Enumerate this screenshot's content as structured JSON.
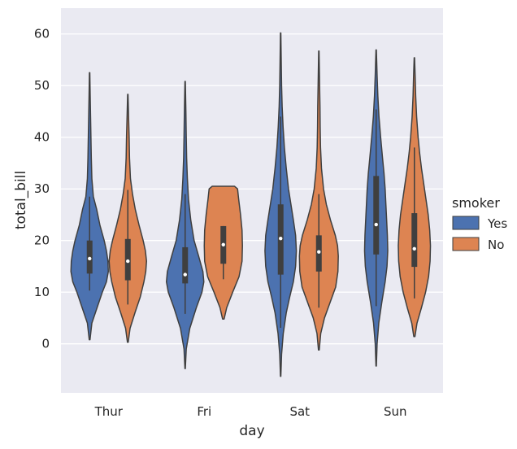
{
  "chart_data": {
    "type": "violin",
    "title": "",
    "xlabel": "day",
    "ylabel": "total_bill",
    "categories": [
      "Thur",
      "Fri",
      "Sat",
      "Sun"
    ],
    "ylim": [
      -9.5,
      65
    ],
    "yticks": [
      0,
      10,
      20,
      30,
      40,
      50,
      60
    ],
    "grid": true,
    "legend": {
      "title": "smoker",
      "position": "right"
    },
    "series": [
      {
        "name": "Yes",
        "color": "#4c72b0",
        "violins": [
          {
            "min": 0.8,
            "max": 52.5,
            "q1": 13.6,
            "median": 16.5,
            "q3": 20.0,
            "whisker_low": 10.3,
            "whisker_high": 28.5,
            "density": [
              [
                0.8,
                0.02
              ],
              [
                4,
                0.12
              ],
              [
                7,
                0.4
              ],
              [
                10,
                0.68
              ],
              [
                12,
                0.9
              ],
              [
                14,
                1
              ],
              [
                16,
                0.98
              ],
              [
                18,
                0.9
              ],
              [
                20,
                0.78
              ],
              [
                23,
                0.55
              ],
              [
                26,
                0.38
              ],
              [
                28.5,
                0.2
              ],
              [
                32,
                0.12
              ],
              [
                36,
                0.09
              ],
              [
                40,
                0.07
              ],
              [
                44,
                0.05
              ],
              [
                48,
                0.03
              ],
              [
                52.5,
                0.01
              ]
            ]
          },
          {
            "min": -4.8,
            "max": 50.8,
            "q1": 11.7,
            "median": 13.4,
            "q3": 18.7,
            "whisker_low": 5.8,
            "whisker_high": 29.0,
            "density": [
              [
                -4.8,
                0.01
              ],
              [
                -1,
                0.06
              ],
              [
                3,
                0.25
              ],
              [
                7,
                0.6
              ],
              [
                10,
                0.9
              ],
              [
                12,
                1
              ],
              [
                14,
                0.95
              ],
              [
                17,
                0.72
              ],
              [
                20,
                0.48
              ],
              [
                24,
                0.3
              ],
              [
                28,
                0.18
              ],
              [
                32,
                0.12
              ],
              [
                36,
                0.08
              ],
              [
                40,
                0.06
              ],
              [
                45,
                0.04
              ],
              [
                50.8,
                0.01
              ]
            ]
          },
          {
            "min": -6.3,
            "max": 60.2,
            "q1": 13.4,
            "median": 20.4,
            "q3": 27.0,
            "whisker_low": 3.1,
            "whisker_high": 44.0,
            "density": [
              [
                -6.3,
                0.01
              ],
              [
                -2,
                0.05
              ],
              [
                2,
                0.14
              ],
              [
                6,
                0.3
              ],
              [
                9,
                0.48
              ],
              [
                12,
                0.68
              ],
              [
                15,
                0.8
              ],
              [
                18,
                0.84
              ],
              [
                21,
                0.8
              ],
              [
                24,
                0.68
              ],
              [
                27,
                0.55
              ],
              [
                30,
                0.42
              ],
              [
                34,
                0.3
              ],
              [
                38,
                0.2
              ],
              [
                42,
                0.13
              ],
              [
                46,
                0.08
              ],
              [
                50,
                0.05
              ],
              [
                55,
                0.03
              ],
              [
                60.2,
                0.01
              ]
            ]
          },
          {
            "min": -4.3,
            "max": 56.9,
            "q1": 17.3,
            "median": 23.1,
            "q3": 32.5,
            "whisker_low": 7.3,
            "whisker_high": 45.4,
            "density": [
              [
                -4.3,
                0.01
              ],
              [
                0,
                0.05
              ],
              [
                4,
                0.14
              ],
              [
                8,
                0.3
              ],
              [
                12,
                0.48
              ],
              [
                15,
                0.58
              ],
              [
                18,
                0.62
              ],
              [
                21,
                0.6
              ],
              [
                24,
                0.56
              ],
              [
                27,
                0.52
              ],
              [
                30,
                0.48
              ],
              [
                33,
                0.42
              ],
              [
                36,
                0.34
              ],
              [
                40,
                0.24
              ],
              [
                44,
                0.15
              ],
              [
                48,
                0.09
              ],
              [
                52,
                0.05
              ],
              [
                56.9,
                0.01
              ]
            ]
          }
        ]
      },
      {
        "name": "No",
        "color": "#dd8452",
        "violins": [
          {
            "min": 0.3,
            "max": 48.3,
            "q1": 12.3,
            "median": 16.0,
            "q3": 20.3,
            "whisker_low": 7.6,
            "whisker_high": 29.8,
            "density": [
              [
                0.3,
                0.02
              ],
              [
                3,
                0.12
              ],
              [
                6,
                0.38
              ],
              [
                9,
                0.66
              ],
              [
                12,
                0.86
              ],
              [
                14,
                0.96
              ],
              [
                16,
                1
              ],
              [
                18,
                0.94
              ],
              [
                20,
                0.82
              ],
              [
                23,
                0.6
              ],
              [
                26,
                0.4
              ],
              [
                29,
                0.25
              ],
              [
                32,
                0.14
              ],
              [
                36,
                0.09
              ],
              [
                40,
                0.07
              ],
              [
                44,
                0.04
              ],
              [
                48.3,
                0.01
              ]
            ]
          },
          {
            "min": 4.8,
            "max": 30.5,
            "q1": 15.5,
            "median": 19.2,
            "q3": 22.8,
            "whisker_low": 12.5,
            "whisker_high": 22.8,
            "density": [
              [
                4.8,
                0.04
              ],
              [
                7,
                0.18
              ],
              [
                10,
                0.5
              ],
              [
                13,
                0.84
              ],
              [
                16,
                1
              ],
              [
                19,
                1.02
              ],
              [
                22,
                1
              ],
              [
                25,
                0.92
              ],
              [
                28,
                0.82
              ],
              [
                30,
                0.76
              ],
              [
                30.5,
                0.6
              ]
            ]
          },
          {
            "min": -1.2,
            "max": 56.7,
            "q1": 14.0,
            "median": 17.8,
            "q3": 21.0,
            "whisker_low": 7.0,
            "whisker_high": 29.0,
            "density": [
              [
                -1.2,
                0.02
              ],
              [
                2,
                0.1
              ],
              [
                5,
                0.3
              ],
              [
                8,
                0.6
              ],
              [
                11,
                0.9
              ],
              [
                14,
                1.02
              ],
              [
                17,
                1.04
              ],
              [
                19,
                1
              ],
              [
                21,
                0.88
              ],
              [
                24,
                0.62
              ],
              [
                27,
                0.4
              ],
              [
                30,
                0.25
              ],
              [
                34,
                0.14
              ],
              [
                38,
                0.09
              ],
              [
                42,
                0.07
              ],
              [
                46,
                0.06
              ],
              [
                50,
                0.04
              ],
              [
                56.7,
                0.01
              ]
            ]
          },
          {
            "min": 1.4,
            "max": 55.4,
            "q1": 14.9,
            "median": 18.4,
            "q3": 25.3,
            "whisker_low": 8.8,
            "whisker_high": 38.0,
            "density": [
              [
                1.4,
                0.03
              ],
              [
                4,
                0.14
              ],
              [
                7,
                0.38
              ],
              [
                10,
                0.6
              ],
              [
                13,
                0.76
              ],
              [
                16,
                0.84
              ],
              [
                19,
                0.86
              ],
              [
                22,
                0.82
              ],
              [
                25,
                0.74
              ],
              [
                28,
                0.62
              ],
              [
                31,
                0.5
              ],
              [
                34,
                0.38
              ],
              [
                37,
                0.28
              ],
              [
                40,
                0.2
              ],
              [
                44,
                0.12
              ],
              [
                48,
                0.07
              ],
              [
                52,
                0.04
              ],
              [
                55.4,
                0.01
              ]
            ]
          }
        ]
      }
    ]
  }
}
